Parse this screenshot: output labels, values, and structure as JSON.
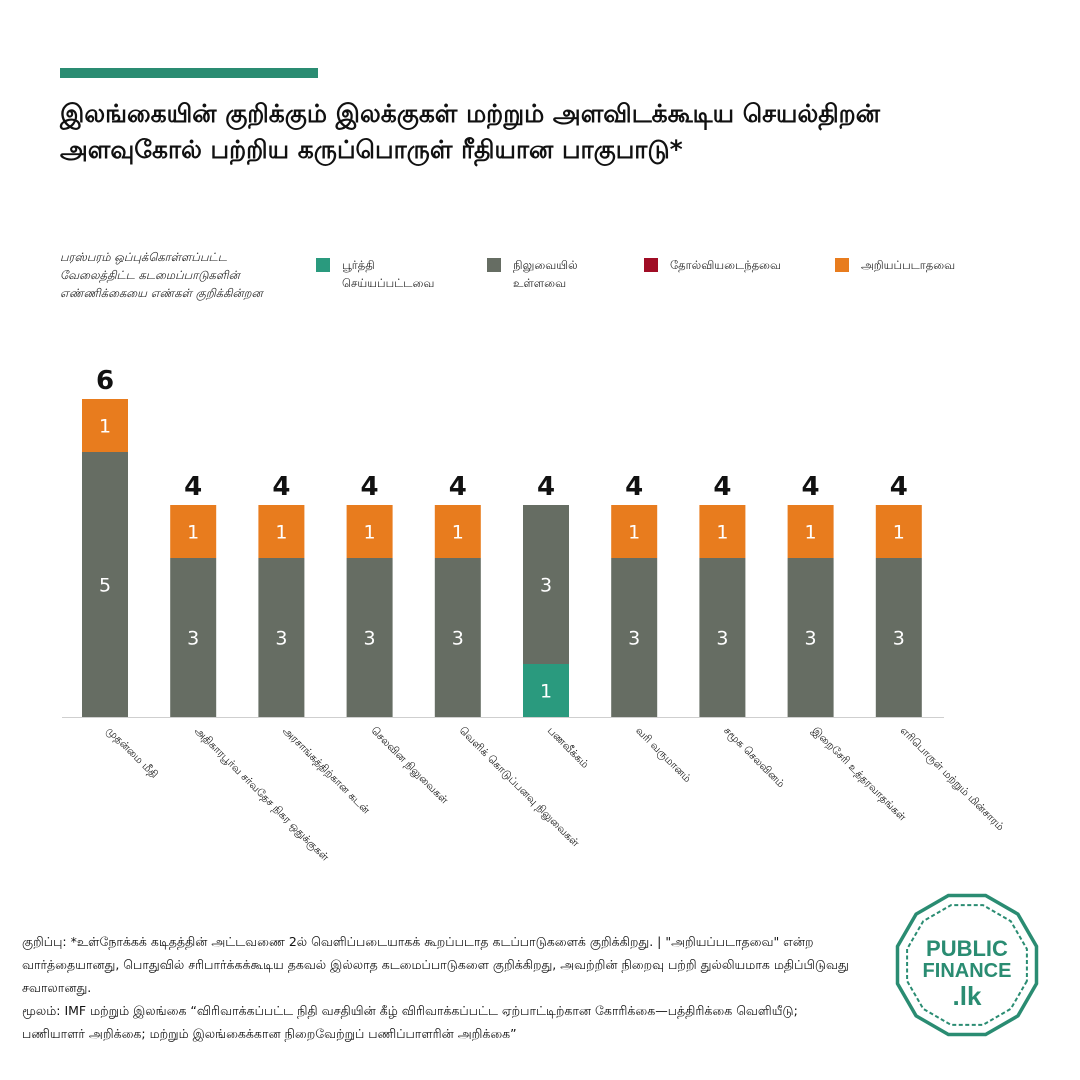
{
  "title": "இலங்கையின் குறிக்கும் இலக்குகள் மற்றும் அளவிடக்கூடிய செயல்திறன் அளவுகோல் பற்றிய கருப்பொருள் ரீதியான பாகுபாடு*",
  "subtitle": "பரஸ்பரம் ஒப்புக்கொள்ளப்பட்ட வேலைத்திட்ட கடமைப்பாடுகளின் எண்ணிக்கையை எண்கள் குறிக்கின்றன",
  "legend": [
    {
      "label": "பூர்த்தி செய்யப்பட்டவை",
      "color": "#2a9a7e"
    },
    {
      "label": "நிலுவையில் உள்ளவை",
      "color": "#666d63"
    },
    {
      "label": "தோல்வியடைந்தவை",
      "color": "#a00d25"
    },
    {
      "label": "அறியப்படாதவை",
      "color": "#e87c1e"
    }
  ],
  "chart_data": {
    "type": "bar",
    "stacked": true,
    "categories": [
      "முதன்மை மீதி",
      "அதிகாரபூர்வ சர்வதேச நிகர ஒதுக்குகள்",
      "அரசாங்கத்திற்கான கடன்",
      "செலவின நிலுவைகள்",
      "வெளிக் கொடுப்பனவு நிலுவைகள்",
      "பணவீக்கம்",
      "வரி வருமானம்",
      "சமூக செலவினம்",
      "இறைசேரி உத்தரவாதங்கள்",
      "எரிபொருள் மற்றும் மின்சாரம்"
    ],
    "series": [
      {
        "name": "பூர்த்தி செய்யப்பட்டவை",
        "color": "#2a9a7e",
        "values": [
          0,
          0,
          0,
          0,
          0,
          1,
          0,
          0,
          0,
          0
        ]
      },
      {
        "name": "நிலுவையில் உள்ளவை",
        "color": "#666d63",
        "values": [
          5,
          3,
          3,
          3,
          3,
          3,
          3,
          3,
          3,
          3
        ]
      },
      {
        "name": "தோல்வியடைந்தவை",
        "color": "#a00d25",
        "values": [
          0,
          0,
          0,
          0,
          0,
          0,
          0,
          0,
          0,
          0
        ]
      },
      {
        "name": "அறியப்படாதவை",
        "color": "#e87c1e",
        "values": [
          1,
          1,
          1,
          1,
          1,
          0,
          1,
          1,
          1,
          1
        ]
      }
    ],
    "totals": [
      6,
      4,
      4,
      4,
      4,
      4,
      4,
      4,
      4,
      4
    ],
    "ylim": [
      0,
      6
    ],
    "grid": false,
    "legend_position": "top",
    "xlabel": "",
    "ylabel": ""
  },
  "footnote": {
    "note": "குறிப்பு: *உள்நோக்கக் கடிதத்தின் அட்டவணை 2ல் வெளிப்படையாகக் கூறப்படாத கடப்பாடுகளைக் குறிக்கிறது. | \"அறியப்படாதவை\" என்ற வார்த்தையானது, பொதுவில் சரிபார்க்கக்கூடிய தகவல் இல்லாத கடமைப்பாடுகளை குறிக்கிறது, அவற்றின் நிறைவு பற்றி துல்லியமாக மதிப்பிடுவது சவாலானது.",
    "source": "மூலம்: IMF மற்றும் இலங்கை “விரிவாக்கப்பட்ட நிதி வசதியின் கீழ் விரிவாக்கப்பட்ட ஏற்பாட்டிற்கான கோரிக்கை—பத்திரிக்கை வெளியீடு; பணியாளர் அறிக்கை; மற்றும் இலங்கைக்கான நிறைவேற்றுப் பணிப்பாளரின் அறிக்கை”"
  },
  "logo": {
    "line1": "PUBLIC",
    "line2": "FINANCE",
    "line3": ".lk",
    "color": "#2a8c72"
  }
}
